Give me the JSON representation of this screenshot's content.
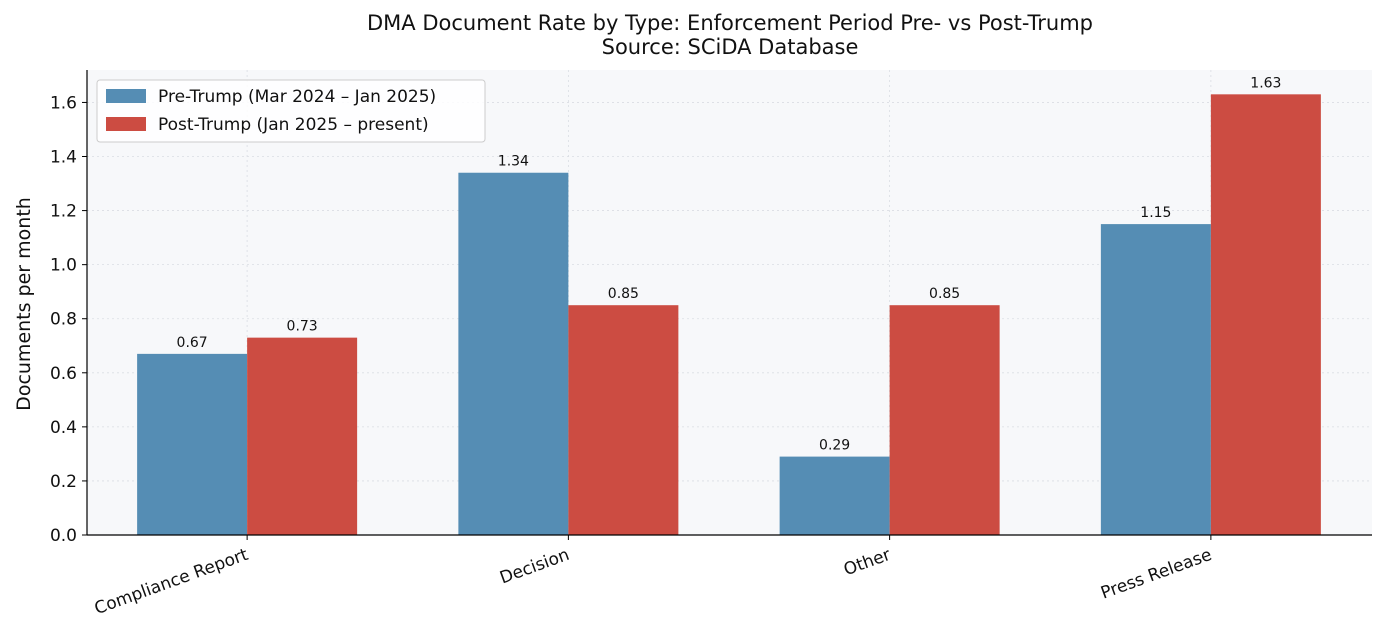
{
  "chart_data": {
    "type": "bar",
    "title": "DMA Document Rate by Type: Enforcement Period Pre- vs Post-Trump",
    "subtitle": "Source: SCiDA Database",
    "xlabel": "",
    "ylabel": "Documents per month",
    "categories": [
      "Compliance Report",
      "Decision",
      "Other",
      "Press Release"
    ],
    "series": [
      {
        "name": "Pre-Trump (Mar 2024 – Jan 2025)",
        "values": [
          0.67,
          1.34,
          0.29,
          1.15
        ],
        "color": "#558DB4",
        "labels": [
          "0.67",
          "1.34",
          "0.29",
          "1.15"
        ]
      },
      {
        "name": "Post-Trump (Jan 2025 – present)",
        "values": [
          0.73,
          0.85,
          0.85,
          1.63
        ],
        "color": "#CC4C42",
        "labels": [
          "0.73",
          "0.85",
          "0.85",
          "1.63"
        ]
      }
    ],
    "ylim": [
      0,
      1.72
    ],
    "yticks": [
      0.0,
      0.2,
      0.4,
      0.6,
      0.8,
      1.0,
      1.2,
      1.4,
      1.6
    ],
    "ytick_labels": [
      "0.0",
      "0.2",
      "0.4",
      "0.6",
      "0.8",
      "1.0",
      "1.2",
      "1.4",
      "1.6"
    ],
    "grid": true,
    "legend_position": "top-left",
    "plot_background": "#F7F8FA"
  }
}
